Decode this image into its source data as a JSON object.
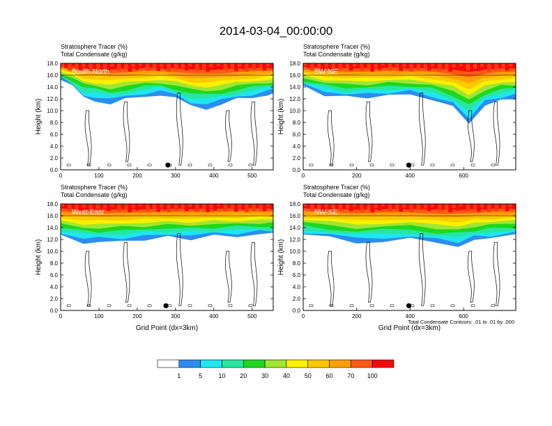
{
  "page": {
    "title": "2014-03-04_00:00:00"
  },
  "chart_data": [
    {
      "type": "heatmap",
      "panel_label": "South-North",
      "subtitle_lines": [
        "Stratosphere Tracer   (%)",
        "Total Condensate   (g/kg)"
      ],
      "ylabel": "Height (km)",
      "xlabel": "",
      "xlim": [
        0,
        555
      ],
      "ylim": [
        0,
        18
      ],
      "xticks": [
        "0",
        "100",
        "200",
        "300",
        "400",
        "500"
      ],
      "yticks": [
        "0.0",
        "2.0",
        "4.0",
        "6.0",
        "8.0",
        "10.0",
        "12.0",
        "14.0",
        "16.0",
        "18.0"
      ],
      "marker_x": 280,
      "contour_note": "",
      "tracer_bottom_km": [
        [
          0,
          15.2
        ],
        [
          30,
          14.0
        ],
        [
          60,
          12.2
        ],
        [
          90,
          11.8
        ],
        [
          130,
          11.2
        ],
        [
          170,
          11.8
        ],
        [
          220,
          12.5
        ],
        [
          260,
          12.8
        ],
        [
          300,
          12.0
        ],
        [
          340,
          10.8
        ],
        [
          380,
          10.5
        ],
        [
          420,
          11.0
        ],
        [
          460,
          11.8
        ],
        [
          500,
          12.3
        ],
        [
          540,
          12.8
        ],
        [
          555,
          13.0
        ]
      ],
      "reference_line_km": 16.0
    },
    {
      "type": "heatmap",
      "panel_label": "SW-NE",
      "subtitle_lines": [
        "Stratosphere Tracer   (%)",
        "Total Condensate   (g/kg)"
      ],
      "ylabel": "Height (km)",
      "xlabel": "",
      "xlim": [
        0,
        795
      ],
      "ylim": [
        0,
        18
      ],
      "xticks": [
        "0",
        "200",
        "400",
        "600"
      ],
      "yticks": [
        "0.0",
        "2.0",
        "4.0",
        "6.0",
        "8.0",
        "10.0",
        "12.0",
        "14.0",
        "16.0",
        "18.0"
      ],
      "marker_x": 395,
      "contour_note": "",
      "tracer_bottom_km": [
        [
          0,
          14.0
        ],
        [
          80,
          12.8
        ],
        [
          160,
          12.2
        ],
        [
          240,
          12.3
        ],
        [
          320,
          12.6
        ],
        [
          400,
          12.7
        ],
        [
          480,
          12.0
        ],
        [
          560,
          10.5
        ],
        [
          620,
          8.0
        ],
        [
          680,
          10.8
        ],
        [
          740,
          11.8
        ],
        [
          795,
          12.2
        ]
      ],
      "reference_line_km": 16.0
    },
    {
      "type": "heatmap",
      "panel_label": "West-East",
      "subtitle_lines": [
        "Stratosphere Tracer   (%)",
        "Total Condensate   (g/kg)"
      ],
      "ylabel": "Height (km)",
      "xlabel": "Grid Point (dx=3km)",
      "xlim": [
        0,
        555
      ],
      "ylim": [
        0,
        18
      ],
      "xticks": [
        "0",
        "100",
        "200",
        "300",
        "400",
        "500"
      ],
      "yticks": [
        "0.0",
        "2.0",
        "4.0",
        "6.0",
        "8.0",
        "10.0",
        "12.0",
        "14.0",
        "16.0",
        "18.0"
      ],
      "marker_x": 275,
      "contour_note": "",
      "tracer_bottom_km": [
        [
          0,
          12.5
        ],
        [
          60,
          11.6
        ],
        [
          100,
          11.5
        ],
        [
          160,
          11.7
        ],
        [
          220,
          12.0
        ],
        [
          280,
          12.3
        ],
        [
          340,
          12.2
        ],
        [
          400,
          12.5
        ],
        [
          460,
          12.6
        ],
        [
          520,
          12.8
        ],
        [
          555,
          12.8
        ]
      ],
      "reference_line_km": 16.0
    },
    {
      "type": "heatmap",
      "panel_label": "NW-SE",
      "subtitle_lines": [
        "Stratosphere Tracer   (%)",
        "Total Condensate   (g/kg)"
      ],
      "ylabel": "Height (km)",
      "xlabel": "Grid Point (dx=3km)",
      "xlim": [
        0,
        795
      ],
      "ylim": [
        0,
        18
      ],
      "xticks": [
        "0",
        "200",
        "400",
        "600"
      ],
      "yticks": [
        "0.0",
        "2.0",
        "4.0",
        "6.0",
        "8.0",
        "10.0",
        "12.0",
        "14.0",
        "16.0",
        "18.0"
      ],
      "marker_x": 395,
      "contour_note": "Total Condensate Contours: .01 to .01 by .000",
      "tracer_bottom_km": [
        [
          0,
          12.8
        ],
        [
          100,
          12.2
        ],
        [
          200,
          11.5
        ],
        [
          300,
          11.8
        ],
        [
          400,
          12.0
        ],
        [
          500,
          11.3
        ],
        [
          580,
          11.0
        ],
        [
          640,
          11.8
        ],
        [
          700,
          12.2
        ],
        [
          795,
          12.6
        ]
      ],
      "reference_line_km": 16.0
    }
  ],
  "colorbar": {
    "levels": [
      "1",
      "5",
      "10",
      "20",
      "30",
      "40",
      "50",
      "60",
      "70",
      "100"
    ],
    "colors": [
      "#ffffff",
      "#2d8cf0",
      "#1ee6f0",
      "#28e6a0",
      "#1ed71e",
      "#a0e632",
      "#fff000",
      "#ffc800",
      "#ffa000",
      "#ff5a14",
      "#f50a0a"
    ]
  },
  "colors": {
    "axis": "#000000",
    "contour": "#000000",
    "marker": "#000000"
  }
}
